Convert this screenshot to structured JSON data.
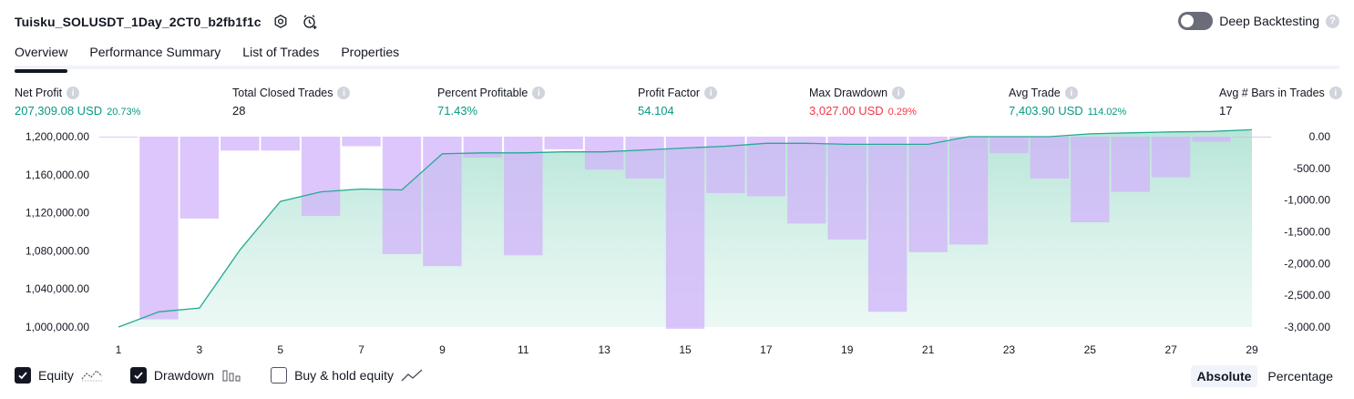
{
  "header": {
    "title": "Tuisku_SOLUSDT_1Day_2CT0_b2fb1f1c",
    "settings_icon": "gear-icon",
    "alert_icon": "add-alert-icon"
  },
  "deep_backtesting": {
    "label": "Deep Backtesting",
    "enabled": false,
    "help": "?"
  },
  "tabs": [
    {
      "label": "Overview",
      "active": true
    },
    {
      "label": "Performance Summary",
      "active": false
    },
    {
      "label": "List of Trades",
      "active": false
    },
    {
      "label": "Properties",
      "active": false
    }
  ],
  "metrics": {
    "net_profit": {
      "label": "Net Profit",
      "value": "207,309.08 USD",
      "pct": "20.73%"
    },
    "total_closed_trades": {
      "label": "Total Closed Trades",
      "value": "28"
    },
    "percent_profitable": {
      "label": "Percent Profitable",
      "value": "71.43%"
    },
    "profit_factor": {
      "label": "Profit Factor",
      "value": "54.104"
    },
    "max_drawdown": {
      "label": "Max Drawdown",
      "value": "3,027.00 USD",
      "pct": "0.29%"
    },
    "avg_trade": {
      "label": "Avg Trade",
      "value": "7,403.90 USD",
      "pct": "114.02%"
    },
    "avg_bars": {
      "label": "Avg # Bars in Trades",
      "value": "17"
    },
    "info_glyph": "i"
  },
  "chart_data": {
    "type": "line+bar",
    "x_ticks": [
      1,
      3,
      5,
      7,
      9,
      11,
      13,
      15,
      17,
      19,
      21,
      23,
      25,
      27,
      29
    ],
    "left_axis": {
      "ticks": [
        "1,200,000.00",
        "1,160,000.00",
        "1,120,000.00",
        "1,080,000.00",
        "1,040,000.00",
        "1,000,000.00"
      ],
      "ylim": [
        1000000,
        1200000
      ]
    },
    "right_axis": {
      "ticks": [
        "0.00",
        "-500.00",
        "-1,000.00",
        "-1,500.00",
        "-2,000.00",
        "-2,500.00",
        "-3,000.00"
      ],
      "ylim": [
        -3000,
        0
      ]
    },
    "series": [
      {
        "name": "Equity",
        "axis": "left",
        "x": [
          1,
          2,
          3,
          4,
          5,
          6,
          7,
          8,
          9,
          10,
          11,
          12,
          13,
          14,
          15,
          16,
          17,
          18,
          19,
          20,
          21,
          22,
          23,
          24,
          25,
          26,
          27,
          28,
          29
        ],
        "values": [
          1000000,
          1016000,
          1020000,
          1081000,
          1132000,
          1142000,
          1145000,
          1144000,
          1182000,
          1183000,
          1183000,
          1184000,
          1184000,
          1186000,
          1188000,
          1190000,
          1193000,
          1193000,
          1192000,
          1192000,
          1192000,
          1200000,
          1200000,
          1200000,
          1203000,
          1204000,
          1205000,
          1205500,
          1207309
        ]
      },
      {
        "name": "Drawdown",
        "axis": "right",
        "x": [
          1,
          2,
          3,
          4,
          5,
          6,
          7,
          8,
          9,
          10,
          11,
          12,
          13,
          14,
          15,
          16,
          17,
          18,
          19,
          20,
          21,
          22,
          23,
          24,
          25,
          26,
          27,
          28,
          29
        ],
        "values": [
          -10,
          -2880,
          -1290,
          -220,
          -220,
          -1250,
          -150,
          -1850,
          -2040,
          -330,
          -1870,
          -200,
          -520,
          -660,
          -3027,
          -890,
          -940,
          -1370,
          -1620,
          -2760,
          -1820,
          -1700,
          -260,
          -660,
          -1350,
          -870,
          -640,
          -80,
          0
        ]
      }
    ]
  },
  "legend": {
    "equity": {
      "label": "Equity",
      "checked": true
    },
    "drawdown": {
      "label": "Drawdown",
      "checked": true
    },
    "buy_hold": {
      "label": "Buy & hold equity",
      "checked": false
    }
  },
  "mode": {
    "absolute": "Absolute",
    "percentage": "Percentage"
  },
  "colors": {
    "equity_line": "#22ab94",
    "equity_fill": "#b2e6d8",
    "drawdown_bar": "#d1b3fa",
    "profit": "#089981",
    "loss": "#f23645"
  }
}
